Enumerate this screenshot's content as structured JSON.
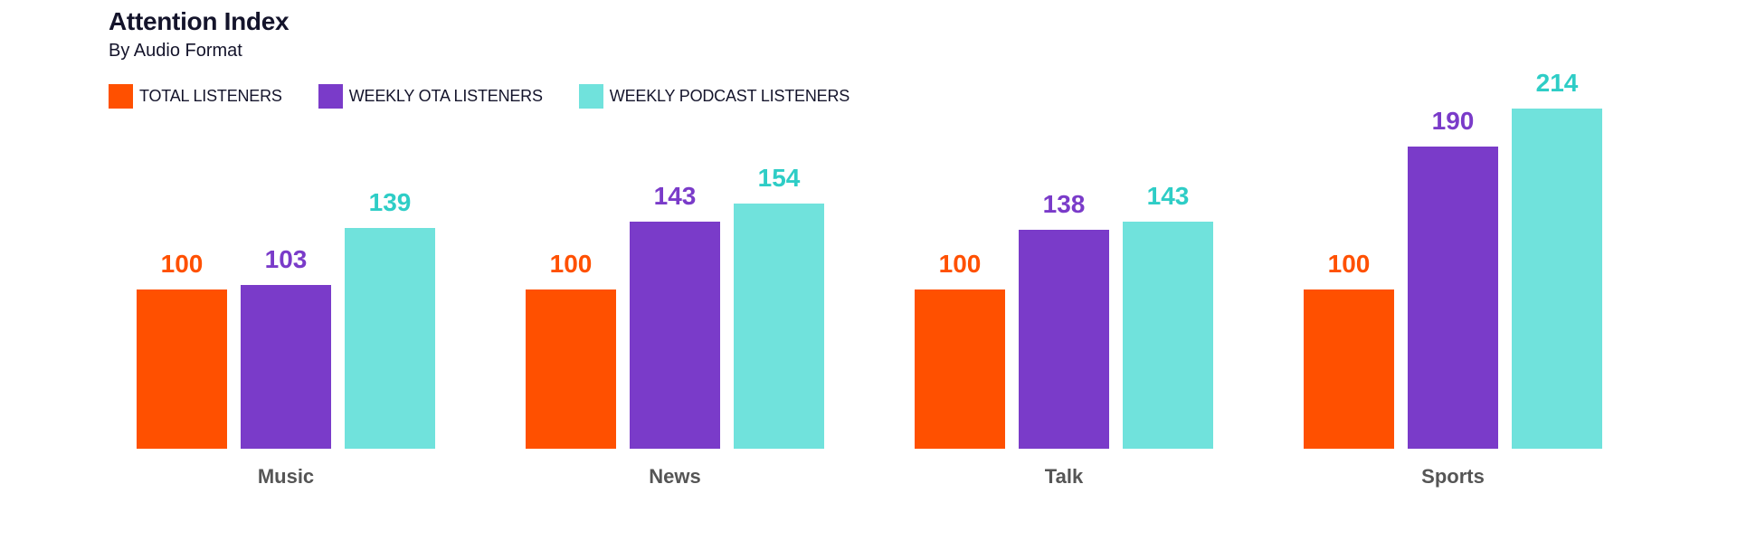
{
  "header": {
    "title": "Attention Index",
    "subtitle": "By Audio Format"
  },
  "legend": [
    {
      "label": "TOTAL LISTENERS",
      "color": "#ff5000"
    },
    {
      "label": "WEEKLY OTA LISTENERS",
      "color": "#7a3bc9"
    },
    {
      "label": "WEEKLY PODCAST LISTENERS",
      "color": "#70e2dc"
    }
  ],
  "colors": {
    "total": "#ff5000",
    "ota": "#7a3bc9",
    "podcast": "#70e2dc",
    "podcast_label": "#2ecdc6",
    "category_label": "#555555",
    "title": "#14142b"
  },
  "chart_data": {
    "type": "bar",
    "title": "Attention Index",
    "subtitle": "By Audio Format",
    "xlabel": "",
    "ylabel": "",
    "categories": [
      "Music",
      "News",
      "Talk",
      "Sports"
    ],
    "series": [
      {
        "name": "TOTAL LISTENERS",
        "color": "#ff5000",
        "values": [
          100,
          100,
          100,
          100
        ]
      },
      {
        "name": "WEEKLY OTA LISTENERS",
        "color": "#7a3bc9",
        "values": [
          103,
          143,
          138,
          190
        ]
      },
      {
        "name": "WEEKLY PODCAST LISTENERS",
        "color": "#70e2dc",
        "values": [
          139,
          154,
          143,
          214
        ]
      }
    ],
    "ylim": [
      0,
      214
    ],
    "grid": false,
    "legend_position": "top-left",
    "data_labels": true
  },
  "groups": [
    {
      "label": "Music",
      "values": [
        "100",
        "103",
        "139"
      ]
    },
    {
      "label": "News",
      "values": [
        "100",
        "143",
        "154"
      ]
    },
    {
      "label": "Talk",
      "values": [
        "100",
        "138",
        "143"
      ]
    },
    {
      "label": "Sports",
      "values": [
        "100",
        "190",
        "214"
      ]
    }
  ]
}
